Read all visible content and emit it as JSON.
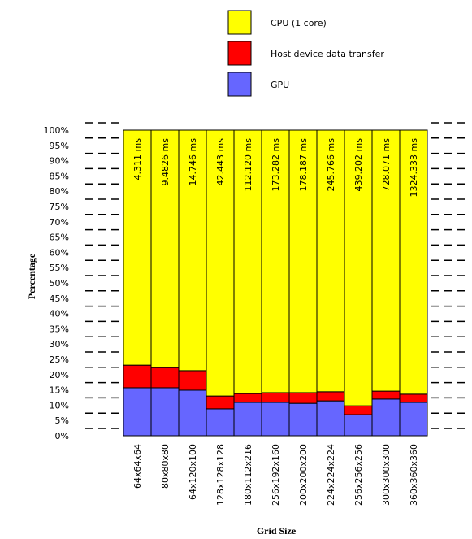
{
  "chart_data": {
    "type": "stacked_bar_percent",
    "x_label": "Grid Size",
    "y_label": "Percentage",
    "categories": [
      "64x64x64",
      "80x80x80",
      "64x120x100",
      "128x128x128",
      "180x112x216",
      "256x192x160",
      "200x200x200",
      "224x224x224",
      "256x256x256",
      "300x300x300",
      "360x360x360"
    ],
    "series": [
      {
        "name": "GPU",
        "color": "#6666ff",
        "values": [
          15.7,
          15.7,
          14.9,
          8.8,
          10.9,
          10.9,
          10.6,
          11.4,
          6.9,
          12.0,
          10.9
        ]
      },
      {
        "name": "Host device data transfer",
        "color": "#ff0000",
        "values": [
          7.4,
          6.6,
          6.4,
          4.2,
          2.9,
          3.2,
          3.5,
          3.0,
          2.9,
          2.6,
          2.7
        ]
      },
      {
        "name": "CPU (1 core)",
        "color": "#ffff00",
        "values": [
          76.9,
          77.7,
          78.7,
          87.0,
          86.2,
          85.9,
          85.9,
          85.6,
          90.2,
          85.4,
          86.4
        ]
      }
    ],
    "bar_labels": [
      "4.311 ms",
      "9.4826 ms",
      "14.746 ms",
      "42.443 ms",
      "112.120 ms",
      "173.282 ms",
      "178.187 ms",
      "245.766 ms",
      "439.202 ms",
      "728.071 ms",
      "1324.333 ms"
    ],
    "ylim": [
      0,
      100
    ],
    "yticks": [
      {
        "value": 0,
        "label": "0%"
      },
      {
        "value": 5,
        "label": "5%"
      },
      {
        "value": 10,
        "label": "10%"
      },
      {
        "value": 15,
        "label": "15%"
      },
      {
        "value": 20,
        "label": "20%"
      },
      {
        "value": 25,
        "label": "25%"
      },
      {
        "value": 30,
        "label": "30%"
      },
      {
        "value": 35,
        "label": "35%"
      },
      {
        "value": 40,
        "label": "40%"
      },
      {
        "value": 45,
        "label": "45%"
      },
      {
        "value": 50,
        "label": "50%"
      },
      {
        "value": 55,
        "label": "55%"
      },
      {
        "value": 60,
        "label": "60%"
      },
      {
        "value": 65,
        "label": "65%"
      },
      {
        "value": 70,
        "label": "70%"
      },
      {
        "value": 75,
        "label": "75%"
      },
      {
        "value": 80,
        "label": "80%"
      },
      {
        "value": 85,
        "label": "85%"
      },
      {
        "value": 90,
        "label": "90%"
      },
      {
        "value": 95,
        "label": "95%"
      },
      {
        "value": 100,
        "label": "100%"
      }
    ],
    "grid": true
  }
}
